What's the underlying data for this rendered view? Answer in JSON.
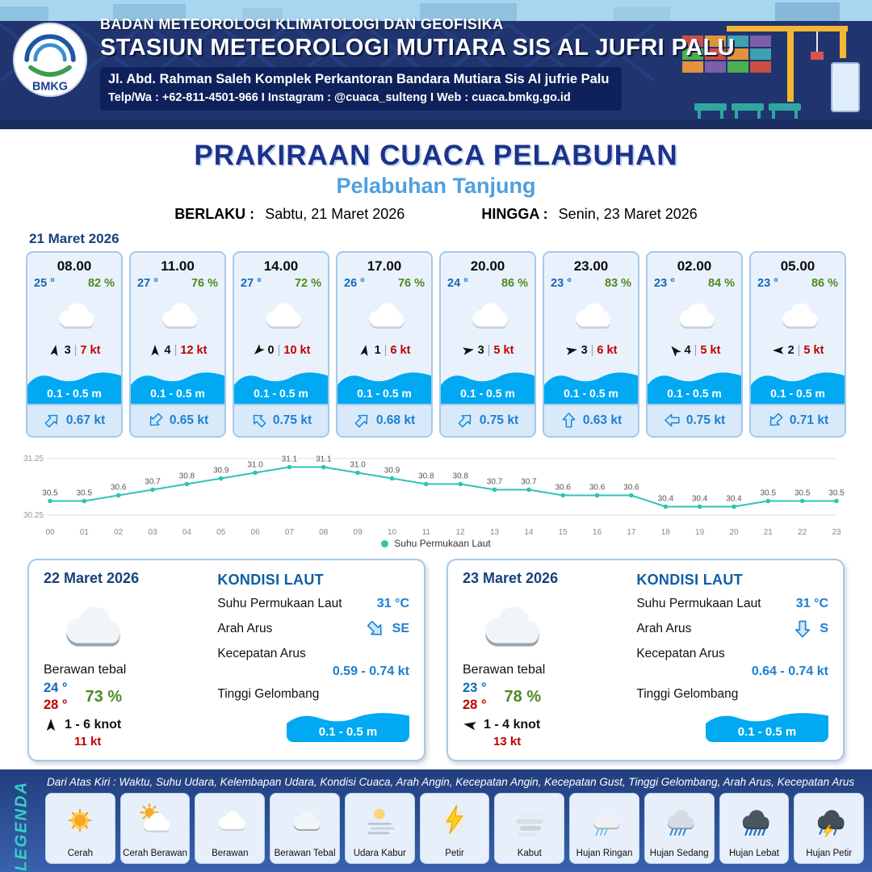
{
  "header": {
    "org": "BADAN METEOROLOGI KLIMATOLOGI DAN GEOFISIKA",
    "station": "STASIUN METEOROLOGI MUTIARA SIS AL JUFRI PALU",
    "address": "Jl. Abd. Rahman Saleh Komplek Perkantoran Bandara Mutiara Sis Al jufrie Palu",
    "contact": "Telp/Wa : +62-811-4501-966  I  Instagram : @cuaca_sulteng  I  Web : cuaca.bmkg.go.id",
    "logo_text": "BMKG"
  },
  "title": {
    "main": "PRAKIRAAN CUACA PELABUHAN",
    "sub": "Pelabuhan Tanjung"
  },
  "validity": {
    "from_label": "BERLAKU :",
    "from_value": "Sabtu, 21 Maret 2026",
    "to_label": "HINGGA :",
    "to_value": "Senin, 23 Maret 2026"
  },
  "forecast": {
    "date": "21 Maret 2026",
    "sep": "|",
    "cards": [
      {
        "time": "08.00",
        "temp": "25 °",
        "humidity": "82 %",
        "icon": "cloud",
        "wind_force": "3",
        "wind_dir_deg": 10,
        "wind_speed": "7 kt",
        "wave": "0.1 - 0.5 m",
        "current_dir_deg": 45,
        "current_speed": "0.67 kt"
      },
      {
        "time": "11.00",
        "temp": "27 °",
        "humidity": "76 %",
        "icon": "cloud",
        "wind_force": "4",
        "wind_dir_deg": 0,
        "wind_speed": "12 kt",
        "wave": "0.1 - 0.5 m",
        "current_dir_deg": 225,
        "current_speed": "0.65 kt"
      },
      {
        "time": "14.00",
        "temp": "27 °",
        "humidity": "72 %",
        "icon": "cloud",
        "wind_force": "0",
        "wind_dir_deg": 225,
        "wind_speed": "10 kt",
        "wave": "0.1 - 0.5 m",
        "current_dir_deg": 315,
        "current_speed": "0.75 kt"
      },
      {
        "time": "17.00",
        "temp": "26 °",
        "humidity": "76 %",
        "icon": "cloud",
        "wind_force": "1",
        "wind_dir_deg": 10,
        "wind_speed": "6 kt",
        "wave": "0.1 - 0.5 m",
        "current_dir_deg": 45,
        "current_speed": "0.68 kt"
      },
      {
        "time": "20.00",
        "temp": "24 °",
        "humidity": "86 %",
        "icon": "cloud",
        "wind_force": "3",
        "wind_dir_deg": 80,
        "wind_speed": "5 kt",
        "wave": "0.1 - 0.5 m",
        "current_dir_deg": 45,
        "current_speed": "0.75 kt"
      },
      {
        "time": "23.00",
        "temp": "23 °",
        "humidity": "83 %",
        "icon": "cloud",
        "wind_force": "3",
        "wind_dir_deg": 80,
        "wind_speed": "6 kt",
        "wave": "0.1 - 0.5 m",
        "current_dir_deg": 0,
        "current_speed": "0.63 kt"
      },
      {
        "time": "02.00",
        "temp": "23 °",
        "humidity": "84 %",
        "icon": "cloud",
        "wind_force": "4",
        "wind_dir_deg": 320,
        "wind_speed": "5 kt",
        "wave": "0.1 - 0.5 m",
        "current_dir_deg": 270,
        "current_speed": "0.75 kt"
      },
      {
        "time": "05.00",
        "temp": "23 °",
        "humidity": "86 %",
        "icon": "cloud",
        "wind_force": "2",
        "wind_dir_deg": 270,
        "wind_speed": "5 kt",
        "wave": "0.1 - 0.5 m",
        "current_dir_deg": 225,
        "current_speed": "0.71 kt"
      }
    ]
  },
  "chart_data": {
    "type": "line",
    "title": "",
    "legend": "Suhu Permukaan Laut",
    "x": [
      "00",
      "01",
      "02",
      "03",
      "04",
      "05",
      "06",
      "07",
      "08",
      "09",
      "10",
      "11",
      "12",
      "13",
      "14",
      "15",
      "16",
      "17",
      "18",
      "19",
      "20",
      "21",
      "22",
      "23"
    ],
    "values": [
      30.5,
      30.5,
      30.6,
      30.7,
      30.8,
      30.9,
      31.0,
      31.1,
      31.1,
      31.0,
      30.9,
      30.8,
      30.8,
      30.7,
      30.7,
      30.6,
      30.6,
      30.6,
      30.4,
      30.4,
      30.4,
      30.5,
      30.5,
      30.5
    ],
    "ylim": [
      30.25,
      31.25
    ],
    "y_ticks": [
      "31.25",
      "30.25"
    ],
    "xlabel": "",
    "ylabel": "",
    "grid": true,
    "legend_position": "bottom",
    "color": "#2fc4b2"
  },
  "day_cards": [
    {
      "date": "22 Maret 2026",
      "icon": "cloud-thick",
      "condition": "Berawan tebal",
      "temp_min": "24 °",
      "temp_max": "28 °",
      "humidity": "73 %",
      "wind_dir_deg": 0,
      "wind_range": "1  - 6 knot",
      "gust": "11 kt",
      "sea": {
        "title": "KONDISI LAUT",
        "sst_label": "Suhu Permukaan Laut",
        "sst": "31 °C",
        "dir_label": "Arah Arus",
        "dir": "SE",
        "dir_deg": 135,
        "speed_label": "Kecepatan Arus",
        "speed": "0.59  - 0.74 kt",
        "wave_label": "Tinggi Gelombang",
        "wave": "0.1 - 0.5 m"
      }
    },
    {
      "date": "23 Maret 2026",
      "icon": "cloud-thick",
      "condition": "Berawan tebal",
      "temp_min": "23 °",
      "temp_max": "28 °",
      "humidity": "78 %",
      "wind_dir_deg": 280,
      "wind_range": "1  - 4 knot",
      "gust": "13 kt",
      "sea": {
        "title": "KONDISI LAUT",
        "sst_label": "Suhu Permukaan Laut",
        "sst": "31 °C",
        "dir_label": "Arah Arus",
        "dir": "S",
        "dir_deg": 180,
        "speed_label": "Kecepatan Arus",
        "speed": "0.64  - 0.74 kt",
        "wave_label": "Tinggi Gelombang",
        "wave": "0.1 - 0.5 m"
      }
    }
  ],
  "legend": {
    "title": "LEGENDA",
    "note": "Dari Atas Kiri : Waktu, Suhu Udara, Kelembapan Udara, Kondisi Cuaca, Arah Angin, Kecepatan Angin, Kecepatan Gust, Tinggi Gelombang, Arah Arus, Kecepatan Arus",
    "items": [
      {
        "label": "Cerah",
        "icon": "sun"
      },
      {
        "label": "Cerah Berawan",
        "icon": "sun-cloud"
      },
      {
        "label": "Berawan",
        "icon": "cloud"
      },
      {
        "label": "Berawan Tebal",
        "icon": "cloud-thick"
      },
      {
        "label": "Udara Kabur",
        "icon": "haze"
      },
      {
        "label": "Petir",
        "icon": "lightning"
      },
      {
        "label": "Kabut",
        "icon": "fog"
      },
      {
        "label": "Hujan Ringan",
        "icon": "rain-light"
      },
      {
        "label": "Hujan Sedang",
        "icon": "rain-moderate"
      },
      {
        "label": "Hujan Lebat",
        "icon": "rain-heavy"
      },
      {
        "label": "Hujan Petir",
        "icon": "thunderstorm"
      }
    ]
  },
  "colors": {
    "navy": "#20356f",
    "title_blue": "#1d3189",
    "subtitle_blue": "#4f9fdf",
    "temp_blue": "#1668b8",
    "humidity_green": "#4e8a1f",
    "wind_red": "#c00000",
    "wave_blue": "#00a9f2",
    "current_blue": "#1b7fd4",
    "chart_teal": "#2fc4b2",
    "legend_teal": "#35d0c5",
    "card_bg": "#e9f2fc",
    "card_border": "#a6c8ea"
  }
}
